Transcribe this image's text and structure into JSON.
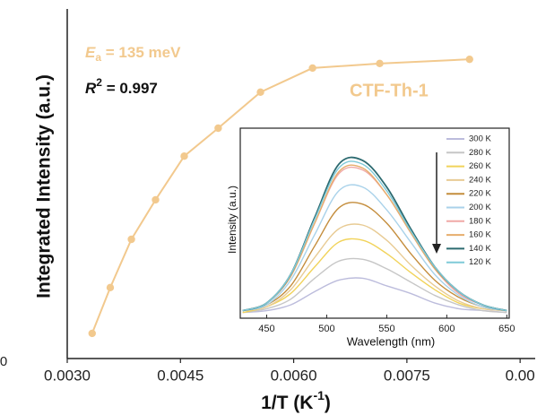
{
  "chart_data": [
    {
      "type": "line",
      "ylabel": "Integrated Intensity (a.u.)",
      "xlabel": {
        "main": "1/T (K",
        "sup": "-1",
        "end": ")"
      },
      "annotations": {
        "ea": {
          "main": "E",
          "sub": "a",
          "rest": " = 135 meV"
        },
        "r2": {
          "main": "R",
          "sup": "2",
          "rest": " = 0.997"
        },
        "sample": "CTF-Th-1"
      },
      "x": [
        0.00333,
        0.00357,
        0.00385,
        0.00417,
        0.00455,
        0.005,
        0.00556,
        0.00625,
        0.00714,
        0.00833
      ],
      "values": [
        0.072,
        0.203,
        0.341,
        0.454,
        0.579,
        0.659,
        0.762,
        0.831,
        0.844,
        0.856
      ],
      "color": "#f2c98e",
      "xlim": [
        0.003,
        0.0092
      ],
      "xticks": [
        {
          "value": 0.003,
          "label": "0.0030"
        },
        {
          "value": 0.0045,
          "label": "0.0045"
        },
        {
          "value": 0.006,
          "label": "0.0060"
        },
        {
          "value": 0.0075,
          "label": "0.0075"
        },
        {
          "value": 0.009,
          "label": "0.00"
        }
      ],
      "ylim": [
        0,
        1
      ],
      "yticks": [
        0
      ]
    },
    {
      "type": "line",
      "ylabel": "Intensity (a.u.)",
      "xlabel": "Wavelength (nm)",
      "x": [
        430,
        450,
        470,
        490,
        510,
        530,
        550,
        570,
        590,
        610,
        630,
        650
      ],
      "series": [
        {
          "name": "300 K",
          "color": "#bcbcdc",
          "values": [
            0.03,
            0.04,
            0.07,
            0.14,
            0.2,
            0.21,
            0.17,
            0.13,
            0.08,
            0.05,
            0.04,
            0.03
          ]
        },
        {
          "name": "280 K",
          "color": "#c6c6c6",
          "values": [
            0.03,
            0.05,
            0.1,
            0.21,
            0.3,
            0.31,
            0.26,
            0.19,
            0.12,
            0.07,
            0.04,
            0.03
          ]
        },
        {
          "name": "260 K",
          "color": "#f1d35a",
          "values": [
            0.03,
            0.06,
            0.13,
            0.27,
            0.4,
            0.41,
            0.34,
            0.24,
            0.15,
            0.08,
            0.05,
            0.04
          ]
        },
        {
          "name": "240 K",
          "color": "#e8cb94",
          "values": [
            0.04,
            0.06,
            0.15,
            0.32,
            0.47,
            0.49,
            0.41,
            0.28,
            0.17,
            0.09,
            0.05,
            0.04
          ]
        },
        {
          "name": "220 K",
          "color": "#c48d3c",
          "values": [
            0.04,
            0.07,
            0.17,
            0.38,
            0.58,
            0.6,
            0.5,
            0.34,
            0.2,
            0.11,
            0.06,
            0.04
          ]
        },
        {
          "name": "200 K",
          "color": "#a9d2ea",
          "values": [
            0.04,
            0.07,
            0.2,
            0.44,
            0.67,
            0.69,
            0.57,
            0.4,
            0.23,
            0.12,
            0.06,
            0.04
          ]
        },
        {
          "name": "180 K",
          "color": "#f0a9a6",
          "values": [
            0.04,
            0.08,
            0.22,
            0.5,
            0.76,
            0.78,
            0.65,
            0.45,
            0.26,
            0.13,
            0.07,
            0.04
          ]
        },
        {
          "name": "160 K",
          "color": "#e6ad6c",
          "values": [
            0.04,
            0.08,
            0.22,
            0.5,
            0.77,
            0.79,
            0.65,
            0.45,
            0.26,
            0.14,
            0.07,
            0.04
          ]
        },
        {
          "name": "140 K",
          "color": "#2c6a70",
          "values": [
            0.04,
            0.08,
            0.23,
            0.53,
            0.81,
            0.83,
            0.69,
            0.47,
            0.27,
            0.14,
            0.07,
            0.04
          ]
        },
        {
          "name": "120 K",
          "color": "#7fcad8",
          "values": [
            0.04,
            0.08,
            0.23,
            0.52,
            0.79,
            0.81,
            0.67,
            0.46,
            0.27,
            0.14,
            0.07,
            0.04
          ]
        }
      ],
      "xlim": [
        428,
        652
      ],
      "xticks": [
        450,
        500,
        550,
        600,
        650
      ],
      "ylim": [
        0,
        1
      ]
    }
  ]
}
